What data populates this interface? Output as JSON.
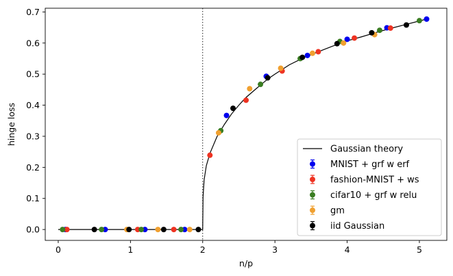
{
  "chart_data": {
    "type": "scatter",
    "xlabel": "n/p",
    "ylabel": "hinge loss",
    "xlim": [
      -0.18,
      5.38
    ],
    "ylim": [
      -0.035,
      0.712
    ],
    "xticks": [
      0,
      1,
      2,
      3,
      4,
      5
    ],
    "xtick_labels": [
      "0",
      "1",
      "2",
      "3",
      "4",
      "5"
    ],
    "yticks": [
      0.0,
      0.1,
      0.2,
      0.3,
      0.4,
      0.5,
      0.6,
      0.7
    ],
    "ytick_labels": [
      "0.0",
      "0.1",
      "0.2",
      "0.3",
      "0.4",
      "0.5",
      "0.6",
      "0.7"
    ],
    "vline": {
      "x": 2,
      "style": "dotted"
    },
    "grid": false,
    "legend_position": "lower-right",
    "theory": {
      "name": "Gaussian theory",
      "color": "#000000",
      "points": [
        [
          0,
          0
        ],
        [
          0.5,
          0
        ],
        [
          1,
          0
        ],
        [
          1.5,
          0
        ],
        [
          1.95,
          0
        ],
        [
          2,
          0
        ],
        [
          2.005,
          0.105
        ],
        [
          2.02,
          0.16
        ],
        [
          2.05,
          0.205
        ],
        [
          2.1,
          0.245
        ],
        [
          2.2,
          0.3
        ],
        [
          2.3,
          0.338
        ],
        [
          2.4,
          0.372
        ],
        [
          2.5,
          0.4
        ],
        [
          2.6,
          0.425
        ],
        [
          2.75,
          0.455
        ],
        [
          2.9,
          0.484
        ],
        [
          3,
          0.5
        ],
        [
          3.2,
          0.53
        ],
        [
          3.4,
          0.553
        ],
        [
          3.6,
          0.572
        ],
        [
          3.8,
          0.59
        ],
        [
          4,
          0.607
        ],
        [
          4.2,
          0.62
        ],
        [
          4.4,
          0.634
        ],
        [
          4.6,
          0.647
        ],
        [
          4.8,
          0.659
        ],
        [
          5,
          0.671
        ],
        [
          5.1,
          0.677
        ]
      ]
    },
    "series": [
      {
        "name": "MNIST + grf w erf",
        "color": "#0000ee",
        "x": [
          0.1,
          0.65,
          1.2,
          1.75,
          2.33,
          2.88,
          3.45,
          4.0,
          4.55,
          5.1
        ],
        "y": [
          0,
          0,
          0,
          0,
          0.367,
          0.493,
          0.56,
          0.612,
          0.649,
          0.677
        ]
      },
      {
        "name": "fashion-MNIST + ws",
        "color": "#ee3322",
        "x": [
          0.12,
          1.1,
          1.6,
          2.1,
          2.6,
          3.1,
          3.6,
          4.1,
          4.6
        ],
        "y": [
          0,
          0,
          0,
          0.239,
          0.416,
          0.51,
          0.572,
          0.616,
          0.648
        ]
      },
      {
        "name": "cifar10 + grf w relu",
        "color": "#3a7d22",
        "x": [
          0.06,
          0.6,
          1.15,
          1.7,
          2.25,
          2.8,
          3.35,
          3.9,
          4.45,
          5.0
        ],
        "y": [
          0,
          0,
          0,
          0,
          0.318,
          0.467,
          0.55,
          0.605,
          0.641,
          0.672
        ]
      },
      {
        "name": "gm",
        "color": "#f0a030",
        "x": [
          0.95,
          1.38,
          1.82,
          2.22,
          2.65,
          3.08,
          3.52,
          3.95,
          4.38
        ],
        "y": [
          0,
          0,
          0,
          0.311,
          0.453,
          0.519,
          0.567,
          0.6,
          0.627
        ]
      },
      {
        "name": "iid Gaussian",
        "color": "#000000",
        "x": [
          0.5,
          0.98,
          1.46,
          1.94,
          2.42,
          2.9,
          3.38,
          3.86,
          4.34,
          4.82
        ],
        "y": [
          0,
          0,
          0,
          0,
          0.39,
          0.488,
          0.554,
          0.598,
          0.633,
          0.658
        ]
      }
    ]
  }
}
